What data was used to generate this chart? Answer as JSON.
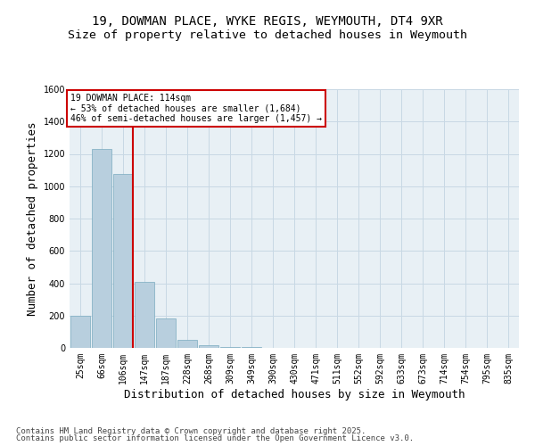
{
  "title_line1": "19, DOWMAN PLACE, WYKE REGIS, WEYMOUTH, DT4 9XR",
  "title_line2": "Size of property relative to detached houses in Weymouth",
  "categories": [
    "25sqm",
    "66sqm",
    "106sqm",
    "147sqm",
    "187sqm",
    "228sqm",
    "268sqm",
    "309sqm",
    "349sqm",
    "390sqm",
    "430sqm",
    "471sqm",
    "511sqm",
    "552sqm",
    "592sqm",
    "633sqm",
    "673sqm",
    "714sqm",
    "754sqm",
    "795sqm",
    "835sqm"
  ],
  "values": [
    200,
    1230,
    1075,
    410,
    180,
    50,
    15,
    8,
    5,
    2,
    1,
    0,
    0,
    0,
    0,
    0,
    0,
    0,
    0,
    0,
    0
  ],
  "bar_color": "#b8cfde",
  "bar_edge_color": "#7aaabf",
  "highlight_bar_index": 2,
  "highlight_line_color": "#cc0000",
  "annotation_line1": "19 DOWMAN PLACE: 114sqm",
  "annotation_line2": "← 53% of detached houses are smaller (1,684)",
  "annotation_line3": "46% of semi-detached houses are larger (1,457) →",
  "annotation_box_color": "#ffffff",
  "annotation_box_edge": "#cc0000",
  "xlabel": "Distribution of detached houses by size in Weymouth",
  "ylabel": "Number of detached properties",
  "ylim": [
    0,
    1600
  ],
  "yticks": [
    0,
    200,
    400,
    600,
    800,
    1000,
    1200,
    1400,
    1600
  ],
  "grid_color": "#c8d8e4",
  "bg_color": "#e8f0f5",
  "footnote_line1": "Contains HM Land Registry data © Crown copyright and database right 2025.",
  "footnote_line2": "Contains public sector information licensed under the Open Government Licence v3.0.",
  "title_fontsize": 10,
  "axis_label_fontsize": 9,
  "tick_fontsize": 7,
  "annotation_fontsize": 7,
  "footnote_fontsize": 6.5
}
